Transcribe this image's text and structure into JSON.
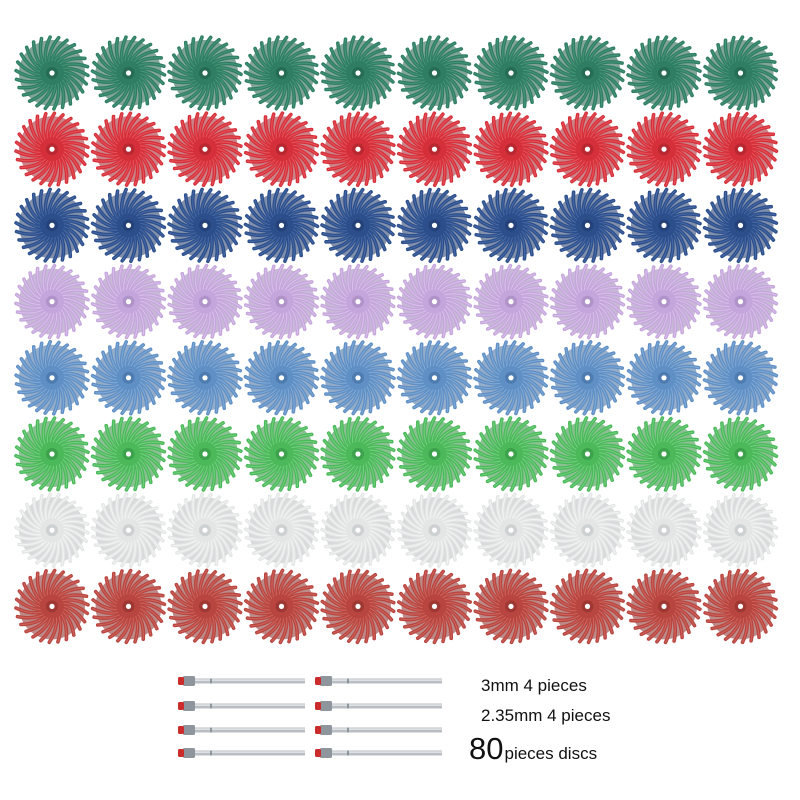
{
  "product": {
    "disc_rows": [
      {
        "color_name": "green",
        "color": "#2f7d63",
        "dark": "#1d5a45",
        "light": "#4a9a7c",
        "count": 10
      },
      {
        "color_name": "red",
        "color": "#d5303a",
        "dark": "#9e1e27",
        "light": "#ea5a62",
        "count": 10
      },
      {
        "color_name": "dark-blue",
        "color": "#2c4f8c",
        "dark": "#1b3566",
        "light": "#4c6eaa",
        "count": 10
      },
      {
        "color_name": "lilac",
        "color": "#c5a6dc",
        "dark": "#9b7fb6",
        "light": "#dcc6ec",
        "count": 10
      },
      {
        "color_name": "light-blue",
        "color": "#5f8fc4",
        "dark": "#3e6a9d",
        "light": "#86aedb",
        "count": 10
      },
      {
        "color_name": "green-bright",
        "color": "#4bb85a",
        "dark": "#2e8c3d",
        "light": "#79d486",
        "count": 10
      },
      {
        "color_name": "white",
        "color": "#e4e6e6",
        "dark": "#b8bcbd",
        "light": "#f5f6f6",
        "count": 10
      },
      {
        "color_name": "maroon",
        "color": "#b8453f",
        "dark": "#852c28",
        "light": "#d26a63",
        "count": 10
      }
    ],
    "mandrels": {
      "count": 8,
      "shaft_color": "#b9bec3",
      "cap_color": "#cc2b2b"
    },
    "captions": {
      "line1": "3mm 4 pieces",
      "line2": "2.35mm 4 pieces",
      "line3_number": "80",
      "line3_text": "pieces discs"
    }
  }
}
